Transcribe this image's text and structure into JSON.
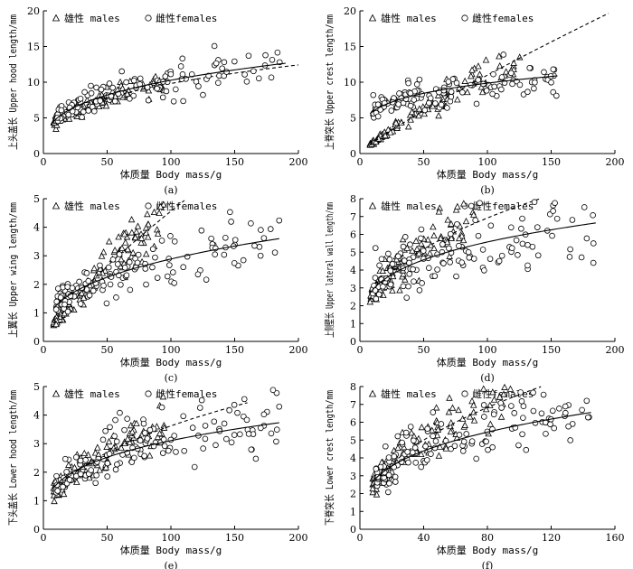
{
  "figure": {
    "legend": {
      "males_label": "雄性 males",
      "females_label": "雌性females"
    }
  },
  "chart_data": [
    {
      "id": "a",
      "type": "scatter",
      "panel_label": "(a)",
      "xlabel": "体质量 Body mass/g",
      "ylabel": "上头盖长 Upper hood length/mm",
      "xlim": [
        0,
        200
      ],
      "ylim": [
        0,
        20
      ],
      "xticks": [
        0,
        50,
        100,
        150,
        200
      ],
      "yticks": [
        0,
        5,
        10,
        15,
        20
      ],
      "series": [
        {
          "name": "males",
          "marker": "triangle",
          "fit": {
            "style": "dashed",
            "a": 2.05,
            "b": 0.34,
            "x_range": [
              8,
              200
            ]
          },
          "cloud": {
            "x_range": [
              8,
              95
            ],
            "count": 110,
            "spread": 0.09
          }
        },
        {
          "name": "females",
          "marker": "circle",
          "fit": {
            "style": "solid",
            "a": 2.3,
            "b": 0.325,
            "x_range": [
              8,
              190
            ]
          },
          "cloud": {
            "x_range": [
              10,
              190
            ],
            "count": 130,
            "spread": 0.12
          }
        }
      ]
    },
    {
      "id": "b",
      "type": "scatter",
      "panel_label": "(b)",
      "xlabel": "体质量 Body mass/g",
      "ylabel": "上脊突长 Upper crest length/mm",
      "xlim": [
        0,
        200
      ],
      "ylim": [
        0,
        20
      ],
      "xticks": [
        0,
        50,
        100,
        150,
        200
      ],
      "yticks": [
        0,
        5,
        10,
        15,
        20
      ],
      "series": [
        {
          "name": "males",
          "marker": "triangle",
          "fit": {
            "style": "dashed",
            "a": 0.2,
            "b": 0.87,
            "x_range": [
              8,
              195
            ]
          },
          "cloud": {
            "x_range": [
              8,
              130
            ],
            "count": 110,
            "spread": 0.1
          }
        },
        {
          "name": "females",
          "marker": "circle",
          "fit": {
            "style": "solid",
            "a": 3.5,
            "b": 0.225,
            "x_range": [
              8,
              155
            ]
          },
          "cloud": {
            "x_range": [
              10,
              155
            ],
            "count": 130,
            "spread": 0.13
          }
        }
      ]
    },
    {
      "id": "c",
      "type": "scatter",
      "panel_label": "(c)",
      "xlabel": "体质量 Body mass/g",
      "ylabel": "上翼长 Upper wing length/mm",
      "xlim": [
        0,
        200
      ],
      "ylim": [
        0,
        5
      ],
      "xticks": [
        0,
        50,
        100,
        150,
        200
      ],
      "yticks": [
        0,
        1,
        2,
        3,
        4,
        5
      ],
      "series": [
        {
          "name": "males",
          "marker": "triangle",
          "fit": {
            "style": "dashed",
            "a": 0.12,
            "b": 0.79,
            "x_range": [
              8,
              160
            ]
          },
          "cloud": {
            "x_range": [
              8,
              95
            ],
            "count": 110,
            "spread": 0.14
          }
        },
        {
          "name": "females",
          "marker": "circle",
          "fit": {
            "style": "solid",
            "a": 0.55,
            "b": 0.36,
            "x_range": [
              8,
              185
            ]
          },
          "cloud": {
            "x_range": [
              10,
              185
            ],
            "count": 130,
            "spread": 0.18
          }
        }
      ]
    },
    {
      "id": "d",
      "type": "scatter",
      "panel_label": "(d)",
      "xlabel": "体质量 Body mass/g",
      "ylabel": "上侧壁长 Upper lateral wall length/mm",
      "xlim": [
        0,
        200
      ],
      "ylim": [
        0,
        8
      ],
      "xticks": [
        0,
        50,
        100,
        150,
        200
      ],
      "yticks": [
        0,
        1,
        2,
        3,
        4,
        5,
        6,
        7,
        8
      ],
      "series": [
        {
          "name": "males",
          "marker": "triangle",
          "fit": {
            "style": "dashed",
            "a": 1.0,
            "b": 0.42,
            "x_range": [
              8,
              160
            ]
          },
          "cloud": {
            "x_range": [
              8,
              95
            ],
            "count": 110,
            "spread": 0.14
          }
        },
        {
          "name": "females",
          "marker": "circle",
          "fit": {
            "style": "solid",
            "a": 1.5,
            "b": 0.285,
            "x_range": [
              8,
              185
            ]
          },
          "cloud": {
            "x_range": [
              10,
              185
            ],
            "count": 130,
            "spread": 0.2
          }
        }
      ]
    },
    {
      "id": "e",
      "type": "scatter",
      "panel_label": "(e)",
      "xlabel": "体质量 Body mass/g",
      "ylabel": "下头盖长 Lower hood length/mm",
      "xlim": [
        0,
        200
      ],
      "ylim": [
        0,
        5
      ],
      "xticks": [
        0,
        50,
        100,
        150,
        200
      ],
      "yticks": [
        0,
        1,
        2,
        3,
        4,
        5
      ],
      "series": [
        {
          "name": "males",
          "marker": "triangle",
          "fit": {
            "style": "dashed",
            "a": 0.5,
            "b": 0.43,
            "x_range": [
              8,
              160
            ]
          },
          "cloud": {
            "x_range": [
              8,
              95
            ],
            "count": 110,
            "spread": 0.13
          }
        },
        {
          "name": "females",
          "marker": "circle",
          "fit": {
            "style": "solid",
            "a": 0.78,
            "b": 0.3,
            "x_range": [
              8,
              185
            ]
          },
          "cloud": {
            "x_range": [
              10,
              185
            ],
            "count": 130,
            "spread": 0.17
          }
        }
      ]
    },
    {
      "id": "f",
      "type": "scatter",
      "panel_label": "(f)",
      "xlabel": "体质量 Body mass/g",
      "ylabel": "下脊突长 Lower crest length/mm",
      "xlim": [
        0,
        160
      ],
      "ylim": [
        0,
        8
      ],
      "xticks": [
        0,
        40,
        80,
        120,
        160
      ],
      "yticks": [
        0,
        1,
        2,
        3,
        4,
        5,
        6,
        7,
        8
      ],
      "series": [
        {
          "name": "males",
          "marker": "triangle",
          "fit": {
            "style": "dashed",
            "a": 0.95,
            "b": 0.45,
            "x_range": [
              8,
              140
            ]
          },
          "cloud": {
            "x_range": [
              8,
              95
            ],
            "count": 110,
            "spread": 0.13
          }
        },
        {
          "name": "females",
          "marker": "circle",
          "fit": {
            "style": "solid",
            "a": 1.4,
            "b": 0.31,
            "x_range": [
              8,
              145
            ]
          },
          "cloud": {
            "x_range": [
              10,
              145
            ],
            "count": 130,
            "spread": 0.16
          }
        }
      ]
    }
  ]
}
